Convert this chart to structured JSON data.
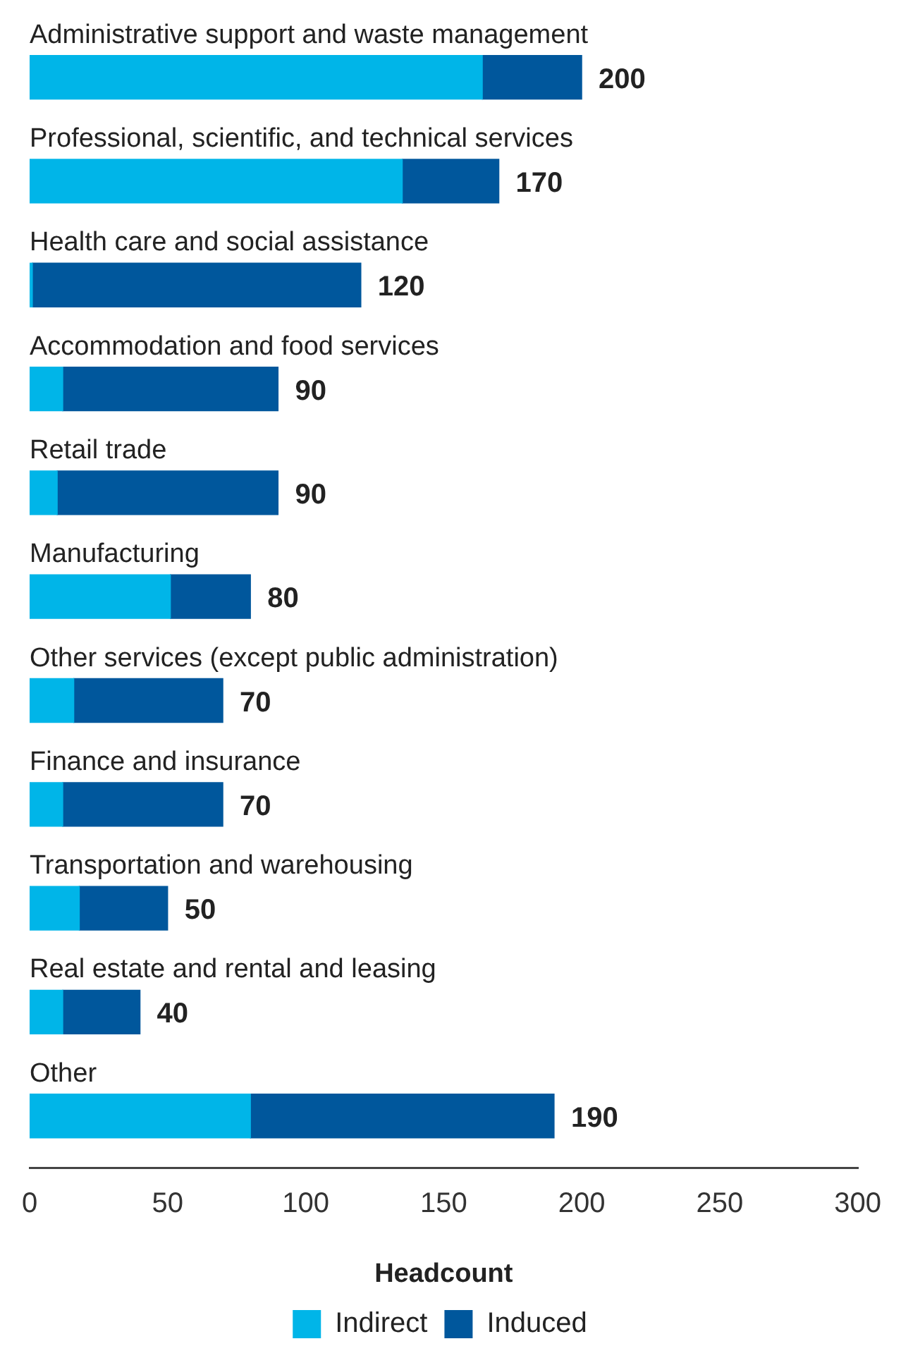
{
  "chart_data": {
    "type": "bar",
    "orientation": "horizontal",
    "stacked": true,
    "categories": [
      "Administrative support and waste management",
      "Professional, scientific, and technical services",
      "Health care and social assistance",
      "Accommodation and food services",
      "Retail trade",
      "Manufacturing",
      "Other services (except public administration)",
      "Finance and insurance",
      "Transportation and warehousing",
      "Real estate and rental and leasing",
      "Other"
    ],
    "series": [
      {
        "name": "Indirect",
        "color": "#00b5e8",
        "values": [
          164,
          135,
          1,
          12,
          10,
          51,
          16,
          12,
          18,
          12,
          80
        ]
      },
      {
        "name": "Induced",
        "color": "#00579c",
        "values": [
          36,
          35,
          119,
          78,
          80,
          29,
          54,
          58,
          32,
          28,
          110
        ]
      }
    ],
    "totals": [
      "200",
      "170",
      "120",
      "90",
      "90",
      "80",
      "70",
      "70",
      "50",
      "40",
      "190"
    ],
    "xlim": [
      0,
      300
    ],
    "xticks": [
      0,
      50,
      100,
      150,
      200,
      250,
      300
    ],
    "xlabel": "Headcount",
    "legend": "bottom"
  }
}
